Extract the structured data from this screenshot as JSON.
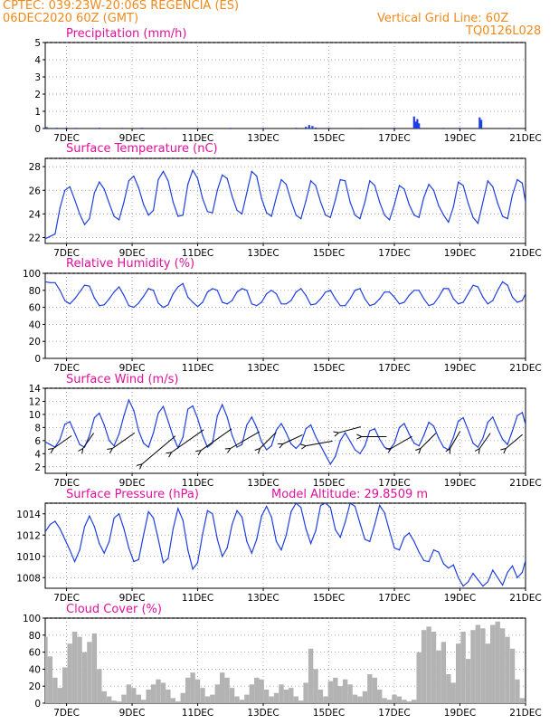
{
  "header": {
    "line1_left": "CPTEC:   039:23W-20:06S   REGENCIA (ES)",
    "line2_left": "06DEC2020 60Z (GMT)",
    "line2_right": "Vertical Grid Line: 60Z",
    "line3_right": "TQ0126L028"
  },
  "x_axis": {
    "tick_labels": [
      "7DEC",
      "9DEC",
      "11DEC",
      "13DEC",
      "15DEC",
      "17DEC",
      "19DEC",
      "21DEC"
    ],
    "tick_days": [
      7,
      9,
      11,
      13,
      15,
      17,
      19,
      21
    ],
    "day_range": [
      6.35,
      21.0
    ]
  },
  "colors": {
    "line": "#1f3fe0",
    "title": "#e0119a",
    "header": "#f08a1c",
    "cloud": "#b3b3b3",
    "arrow": "#000000"
  },
  "chart_data": [
    {
      "type": "bar",
      "title": "Precipitation (mm/h)",
      "ylim": [
        0,
        5
      ],
      "yticks": [
        0,
        1,
        2,
        3,
        4,
        5
      ],
      "x_days": [
        6.4,
        6.7,
        7.0,
        7.3,
        8.0,
        8.7,
        9.3,
        10.0,
        11.0,
        12.0,
        13.0,
        14.0,
        14.3,
        14.4,
        14.5,
        14.6,
        15.0,
        16.0,
        17.0,
        17.6,
        17.65,
        17.7,
        17.75,
        18.5,
        19.0,
        19.6,
        19.65,
        20.5
      ],
      "values": [
        0.08,
        0.05,
        0.06,
        0.04,
        0.05,
        0.04,
        0.05,
        0.04,
        0.03,
        0.03,
        0.03,
        0.05,
        0.1,
        0.2,
        0.15,
        0.06,
        0.04,
        0.04,
        0.05,
        0.7,
        0.4,
        0.55,
        0.3,
        0.04,
        0.04,
        0.65,
        0.5,
        0.04
      ]
    },
    {
      "type": "line",
      "title": "Surface Temperature (nC)",
      "ylim": [
        21.5,
        28.7
      ],
      "yticks": [
        22,
        24,
        26,
        28
      ],
      "x_days": [
        6.35,
        6.5,
        6.65,
        6.8,
        6.95,
        7.1,
        7.25,
        7.4,
        7.55,
        7.7,
        7.85,
        8.0,
        8.15,
        8.3,
        8.45,
        8.6,
        8.75,
        8.9,
        9.05,
        9.2,
        9.35,
        9.5,
        9.65,
        9.8,
        9.95,
        10.1,
        10.25,
        10.4,
        10.55,
        10.7,
        10.85,
        11.0,
        11.15,
        11.3,
        11.45,
        11.6,
        11.75,
        11.9,
        12.05,
        12.2,
        12.35,
        12.5,
        12.65,
        12.8,
        12.95,
        13.1,
        13.25,
        13.4,
        13.55,
        13.7,
        13.85,
        14.0,
        14.15,
        14.3,
        14.45,
        14.6,
        14.75,
        14.9,
        15.05,
        15.2,
        15.35,
        15.5,
        15.65,
        15.8,
        15.95,
        16.1,
        16.25,
        16.4,
        16.55,
        16.7,
        16.85,
        17.0,
        17.15,
        17.3,
        17.45,
        17.6,
        17.75,
        17.9,
        18.05,
        18.2,
        18.35,
        18.5,
        18.65,
        18.8,
        18.95,
        19.1,
        19.25,
        19.4,
        19.55,
        19.7,
        19.85,
        20.0,
        20.15,
        20.3,
        20.45,
        20.6,
        20.75,
        20.9,
        21.0
      ],
      "values": [
        21.9,
        22.1,
        22.3,
        24.5,
        26.0,
        26.3,
        25.2,
        24.0,
        23.1,
        23.6,
        25.8,
        26.7,
        26.1,
        24.9,
        23.8,
        23.5,
        25.0,
        26.8,
        27.2,
        26.2,
        24.8,
        23.9,
        24.3,
        26.9,
        27.6,
        26.8,
        25.0,
        23.8,
        23.9,
        26.5,
        27.7,
        27.0,
        25.3,
        24.2,
        24.1,
        26.0,
        27.3,
        27.0,
        25.5,
        24.3,
        24.0,
        25.8,
        27.6,
        27.2,
        25.3,
        24.1,
        23.8,
        25.4,
        26.9,
        26.5,
        25.1,
        23.9,
        23.6,
        25.1,
        26.8,
        26.4,
        25.0,
        23.9,
        23.7,
        25.2,
        26.9,
        26.8,
        25.0,
        23.9,
        23.6,
        25.0,
        26.8,
        26.4,
        25.0,
        23.9,
        23.5,
        24.8,
        26.4,
        26.1,
        24.8,
        23.9,
        23.7,
        25.4,
        26.5,
        26.0,
        24.7,
        23.9,
        23.3,
        24.6,
        26.7,
        26.4,
        24.9,
        23.7,
        23.2,
        25.0,
        26.8,
        26.3,
        24.9,
        23.8,
        23.6,
        25.6,
        26.9,
        26.6,
        25.0
      ]
    },
    {
      "type": "line",
      "title": "Relative Humidity (%)",
      "ylim": [
        0,
        100
      ],
      "yticks": [
        0,
        20,
        40,
        60,
        80,
        100
      ],
      "x_days": [
        6.35,
        6.5,
        6.65,
        6.8,
        6.95,
        7.1,
        7.25,
        7.4,
        7.55,
        7.7,
        7.85,
        8.0,
        8.15,
        8.3,
        8.45,
        8.6,
        8.75,
        8.9,
        9.05,
        9.2,
        9.35,
        9.5,
        9.65,
        9.8,
        9.95,
        10.1,
        10.25,
        10.4,
        10.55,
        10.7,
        10.85,
        11.0,
        11.15,
        11.3,
        11.45,
        11.6,
        11.75,
        11.9,
        12.05,
        12.2,
        12.35,
        12.5,
        12.65,
        12.8,
        12.95,
        13.1,
        13.25,
        13.4,
        13.55,
        13.7,
        13.85,
        14.0,
        14.15,
        14.3,
        14.45,
        14.6,
        14.75,
        14.9,
        15.05,
        15.2,
        15.35,
        15.5,
        15.65,
        15.8,
        15.95,
        16.1,
        16.25,
        16.4,
        16.55,
        16.7,
        16.85,
        17.0,
        17.15,
        17.3,
        17.45,
        17.6,
        17.75,
        17.9,
        18.05,
        18.2,
        18.35,
        18.5,
        18.65,
        18.8,
        18.95,
        19.1,
        19.25,
        19.4,
        19.55,
        19.7,
        19.85,
        20.0,
        20.15,
        20.3,
        20.45,
        20.6,
        20.75,
        20.9,
        21.0
      ],
      "values": [
        90,
        89,
        89,
        80,
        68,
        64,
        70,
        78,
        86,
        85,
        71,
        62,
        63,
        70,
        78,
        84,
        74,
        62,
        60,
        65,
        73,
        82,
        80,
        65,
        60,
        63,
        76,
        84,
        88,
        72,
        66,
        61,
        66,
        78,
        82,
        80,
        66,
        64,
        68,
        78,
        82,
        80,
        64,
        62,
        66,
        76,
        80,
        76,
        64,
        64,
        68,
        78,
        82,
        74,
        63,
        64,
        70,
        78,
        80,
        70,
        62,
        62,
        70,
        80,
        82,
        70,
        62,
        64,
        70,
        78,
        78,
        72,
        64,
        66,
        74,
        80,
        80,
        70,
        62,
        64,
        72,
        82,
        82,
        70,
        64,
        66,
        76,
        86,
        84,
        72,
        64,
        68,
        80,
        90,
        86,
        72,
        66,
        68,
        76
      ]
    },
    {
      "type": "line",
      "title": "Surface Wind (m/s)",
      "ylim": [
        1,
        14
      ],
      "yticks": [
        2,
        4,
        6,
        8,
        10,
        12,
        14
      ],
      "x_days": [
        6.35,
        6.5,
        6.65,
        6.8,
        6.95,
        7.1,
        7.25,
        7.4,
        7.55,
        7.7,
        7.85,
        8.0,
        8.15,
        8.3,
        8.45,
        8.6,
        8.75,
        8.9,
        9.05,
        9.2,
        9.35,
        9.5,
        9.65,
        9.8,
        9.95,
        10.1,
        10.25,
        10.4,
        10.55,
        10.7,
        10.85,
        11.0,
        11.15,
        11.3,
        11.45,
        11.6,
        11.75,
        11.9,
        12.05,
        12.2,
        12.35,
        12.5,
        12.65,
        12.8,
        12.95,
        13.1,
        13.25,
        13.4,
        13.55,
        13.7,
        13.85,
        14.0,
        14.15,
        14.3,
        14.45,
        14.6,
        14.75,
        14.9,
        15.05,
        15.2,
        15.35,
        15.5,
        15.65,
        15.8,
        15.95,
        16.1,
        16.25,
        16.4,
        16.55,
        16.7,
        16.85,
        17.0,
        17.15,
        17.3,
        17.45,
        17.6,
        17.75,
        17.9,
        18.05,
        18.2,
        18.35,
        18.5,
        18.65,
        18.8,
        18.95,
        19.1,
        19.25,
        19.4,
        19.55,
        19.7,
        19.85,
        20.0,
        20.15,
        20.3,
        20.45,
        20.6,
        20.75,
        20.9,
        21.0
      ],
      "values": [
        5.8,
        5.4,
        5.0,
        6.2,
        8.5,
        8.9,
        7.2,
        5.4,
        5.0,
        6.8,
        9.5,
        10.2,
        8.4,
        6.0,
        5.2,
        7.0,
        9.8,
        12.2,
        10.6,
        7.5,
        5.6,
        5.0,
        7.2,
        10.2,
        11.2,
        9.0,
        6.6,
        4.9,
        6.5,
        10.8,
        11.3,
        9.4,
        6.8,
        5.0,
        5.6,
        9.8,
        11.5,
        9.6,
        6.8,
        5.0,
        5.4,
        8.4,
        9.6,
        8.0,
        5.8,
        4.6,
        5.2,
        7.6,
        8.6,
        7.2,
        5.5,
        4.8,
        5.6,
        7.8,
        8.4,
        6.6,
        5.2,
        3.8,
        2.4,
        3.6,
        6.0,
        7.2,
        5.9,
        4.6,
        4.0,
        5.2,
        7.5,
        7.8,
        6.2,
        5.0,
        4.6,
        5.6,
        8.0,
        8.6,
        7.0,
        5.6,
        5.2,
        6.8,
        8.8,
        8.2,
        6.4,
        5.0,
        4.6,
        6.5,
        9.0,
        9.5,
        7.6,
        5.6,
        5.0,
        6.4,
        8.8,
        9.6,
        7.8,
        6.2,
        5.4,
        7.5,
        9.8,
        10.3,
        8.5
      ],
      "arrows": [
        {
          "x_day": 6.6,
          "y": 4.8,
          "dir_deg": 55,
          "speed": 5.3
        },
        {
          "x_day": 7.5,
          "y": 4.8,
          "dir_deg": 35,
          "speed": 4.5
        },
        {
          "x_day": 8.4,
          "y": 4.8,
          "dir_deg": 55,
          "speed": 6.5
        },
        {
          "x_day": 9.3,
          "y": 2.4,
          "dir_deg": 50,
          "speed": 10.5
        },
        {
          "x_day": 10.2,
          "y": 4.2,
          "dir_deg": 55,
          "speed": 9.5
        },
        {
          "x_day": 11.1,
          "y": 4.5,
          "dir_deg": 55,
          "speed": 9.0
        },
        {
          "x_day": 12.0,
          "y": 4.8,
          "dir_deg": 60,
          "speed": 8.0
        },
        {
          "x_day": 12.9,
          "y": 4.8,
          "dir_deg": 45,
          "speed": 5.5
        },
        {
          "x_day": 13.6,
          "y": 5.5,
          "dir_deg": 65,
          "speed": 5.2
        },
        {
          "x_day": 14.3,
          "y": 5.2,
          "dir_deg": 80,
          "speed": 6.5
        },
        {
          "x_day": 15.3,
          "y": 7.2,
          "dir_deg": 75,
          "speed": 5.5
        },
        {
          "x_day": 16.0,
          "y": 6.6,
          "dir_deg": 90,
          "speed": 6.0
        },
        {
          "x_day": 16.9,
          "y": 4.8,
          "dir_deg": 60,
          "speed": 5.8
        },
        {
          "x_day": 17.8,
          "y": 4.8,
          "dir_deg": 45,
          "speed": 5.2
        },
        {
          "x_day": 18.7,
          "y": 4.8,
          "dir_deg": 30,
          "speed": 4.8
        },
        {
          "x_day": 19.6,
          "y": 4.8,
          "dir_deg": 35,
          "speed": 4.5
        },
        {
          "x_day": 20.4,
          "y": 4.8,
          "dir_deg": 50,
          "speed": 5.2
        }
      ]
    },
    {
      "type": "line",
      "title": "Surface Pressure (hPa)",
      "annotation": "Model Altitude: 29.8509 m",
      "ylim": [
        1007.0,
        1015.0
      ],
      "yticks": [
        1008,
        1010,
        1012,
        1014
      ],
      "x_days": [
        6.35,
        6.5,
        6.65,
        6.8,
        6.95,
        7.1,
        7.25,
        7.4,
        7.55,
        7.7,
        7.85,
        8.0,
        8.15,
        8.3,
        8.45,
        8.6,
        8.75,
        8.9,
        9.05,
        9.2,
        9.35,
        9.5,
        9.65,
        9.8,
        9.95,
        10.1,
        10.25,
        10.4,
        10.55,
        10.7,
        10.85,
        11.0,
        11.15,
        11.3,
        11.45,
        11.6,
        11.75,
        11.9,
        12.05,
        12.2,
        12.35,
        12.5,
        12.65,
        12.8,
        12.95,
        13.1,
        13.25,
        13.4,
        13.55,
        13.7,
        13.85,
        14.0,
        14.15,
        14.3,
        14.45,
        14.6,
        14.75,
        14.9,
        15.05,
        15.2,
        15.35,
        15.5,
        15.65,
        15.8,
        15.95,
        16.1,
        16.25,
        16.4,
        16.55,
        16.7,
        16.85,
        17.0,
        17.15,
        17.3,
        17.45,
        17.6,
        17.75,
        17.9,
        18.05,
        18.2,
        18.35,
        18.5,
        18.65,
        18.8,
        18.95,
        19.1,
        19.25,
        19.4,
        19.55,
        19.7,
        19.85,
        20.0,
        20.15,
        20.3,
        20.45,
        20.6,
        20.75,
        20.9,
        21.0
      ],
      "values": [
        1012.3,
        1013.0,
        1013.3,
        1012.6,
        1011.6,
        1010.6,
        1009.5,
        1010.6,
        1012.8,
        1013.8,
        1012.8,
        1011.2,
        1010.3,
        1011.4,
        1013.6,
        1014.0,
        1012.6,
        1010.8,
        1009.5,
        1009.7,
        1012.0,
        1014.2,
        1013.6,
        1011.6,
        1009.4,
        1009.8,
        1012.6,
        1014.5,
        1013.4,
        1010.6,
        1008.8,
        1009.4,
        1012.1,
        1014.3,
        1014.0,
        1011.6,
        1010.0,
        1010.8,
        1013.0,
        1014.3,
        1013.7,
        1011.4,
        1010.3,
        1011.6,
        1013.8,
        1014.7,
        1013.7,
        1011.4,
        1010.6,
        1012.0,
        1014.2,
        1015.0,
        1014.6,
        1012.6,
        1011.2,
        1012.4,
        1014.8,
        1015.0,
        1014.6,
        1012.5,
        1011.8,
        1013.2,
        1015.0,
        1014.7,
        1013.1,
        1011.6,
        1011.4,
        1013.0,
        1014.8,
        1014.1,
        1012.4,
        1010.8,
        1010.6,
        1011.8,
        1012.2,
        1011.4,
        1010.4,
        1009.6,
        1009.5,
        1010.6,
        1010.4,
        1009.3,
        1008.9,
        1009.2,
        1008.0,
        1007.2,
        1007.6,
        1008.4,
        1007.8,
        1007.2,
        1007.6,
        1008.7,
        1008.0,
        1007.3,
        1008.5,
        1009.1,
        1008.0,
        1008.5,
        1009.6
      ]
    },
    {
      "type": "bar",
      "title": "Cloud Cover (%)",
      "ylim": [
        0,
        100
      ],
      "yticks": [
        0,
        20,
        40,
        60,
        80,
        100
      ],
      "x_days": [
        6.35,
        6.5,
        6.65,
        6.8,
        6.95,
        7.1,
        7.25,
        7.4,
        7.55,
        7.7,
        7.85,
        8.0,
        8.15,
        8.3,
        8.45,
        8.6,
        8.75,
        8.9,
        9.05,
        9.2,
        9.35,
        9.5,
        9.65,
        9.8,
        9.95,
        10.1,
        10.25,
        10.4,
        10.55,
        10.7,
        10.85,
        11.0,
        11.15,
        11.3,
        11.45,
        11.6,
        11.75,
        11.9,
        12.05,
        12.2,
        12.35,
        12.5,
        12.65,
        12.8,
        12.95,
        13.1,
        13.25,
        13.4,
        13.55,
        13.7,
        13.85,
        14.0,
        14.15,
        14.3,
        14.45,
        14.6,
        14.75,
        14.9,
        15.05,
        15.2,
        15.35,
        15.5,
        15.65,
        15.8,
        15.95,
        16.1,
        16.25,
        16.4,
        16.55,
        16.7,
        16.85,
        17.0,
        17.15,
        17.3,
        17.45,
        17.6,
        17.75,
        17.9,
        18.05,
        18.2,
        18.35,
        18.5,
        18.65,
        18.8,
        18.95,
        19.1,
        19.25,
        19.4,
        19.55,
        19.7,
        19.85,
        20.0,
        20.15,
        20.3,
        20.45,
        20.6,
        20.75,
        20.9,
        21.0
      ],
      "values": [
        78,
        55,
        30,
        18,
        42,
        70,
        84,
        78,
        60,
        72,
        82,
        40,
        14,
        8,
        3,
        2,
        10,
        22,
        18,
        10,
        4,
        16,
        22,
        28,
        24,
        16,
        6,
        2,
        12,
        30,
        36,
        28,
        18,
        8,
        10,
        22,
        36,
        30,
        18,
        8,
        4,
        10,
        22,
        30,
        28,
        16,
        8,
        12,
        22,
        16,
        18,
        8,
        3,
        24,
        64,
        40,
        16,
        8,
        26,
        30,
        20,
        28,
        22,
        10,
        8,
        14,
        34,
        30,
        16,
        6,
        4,
        10,
        8,
        4,
        2,
        4,
        60,
        86,
        90,
        84,
        62,
        72,
        34,
        24,
        70,
        84,
        52,
        86,
        92,
        88,
        70,
        92,
        96,
        88,
        78,
        64,
        28,
        6,
        2
      ]
    }
  ]
}
